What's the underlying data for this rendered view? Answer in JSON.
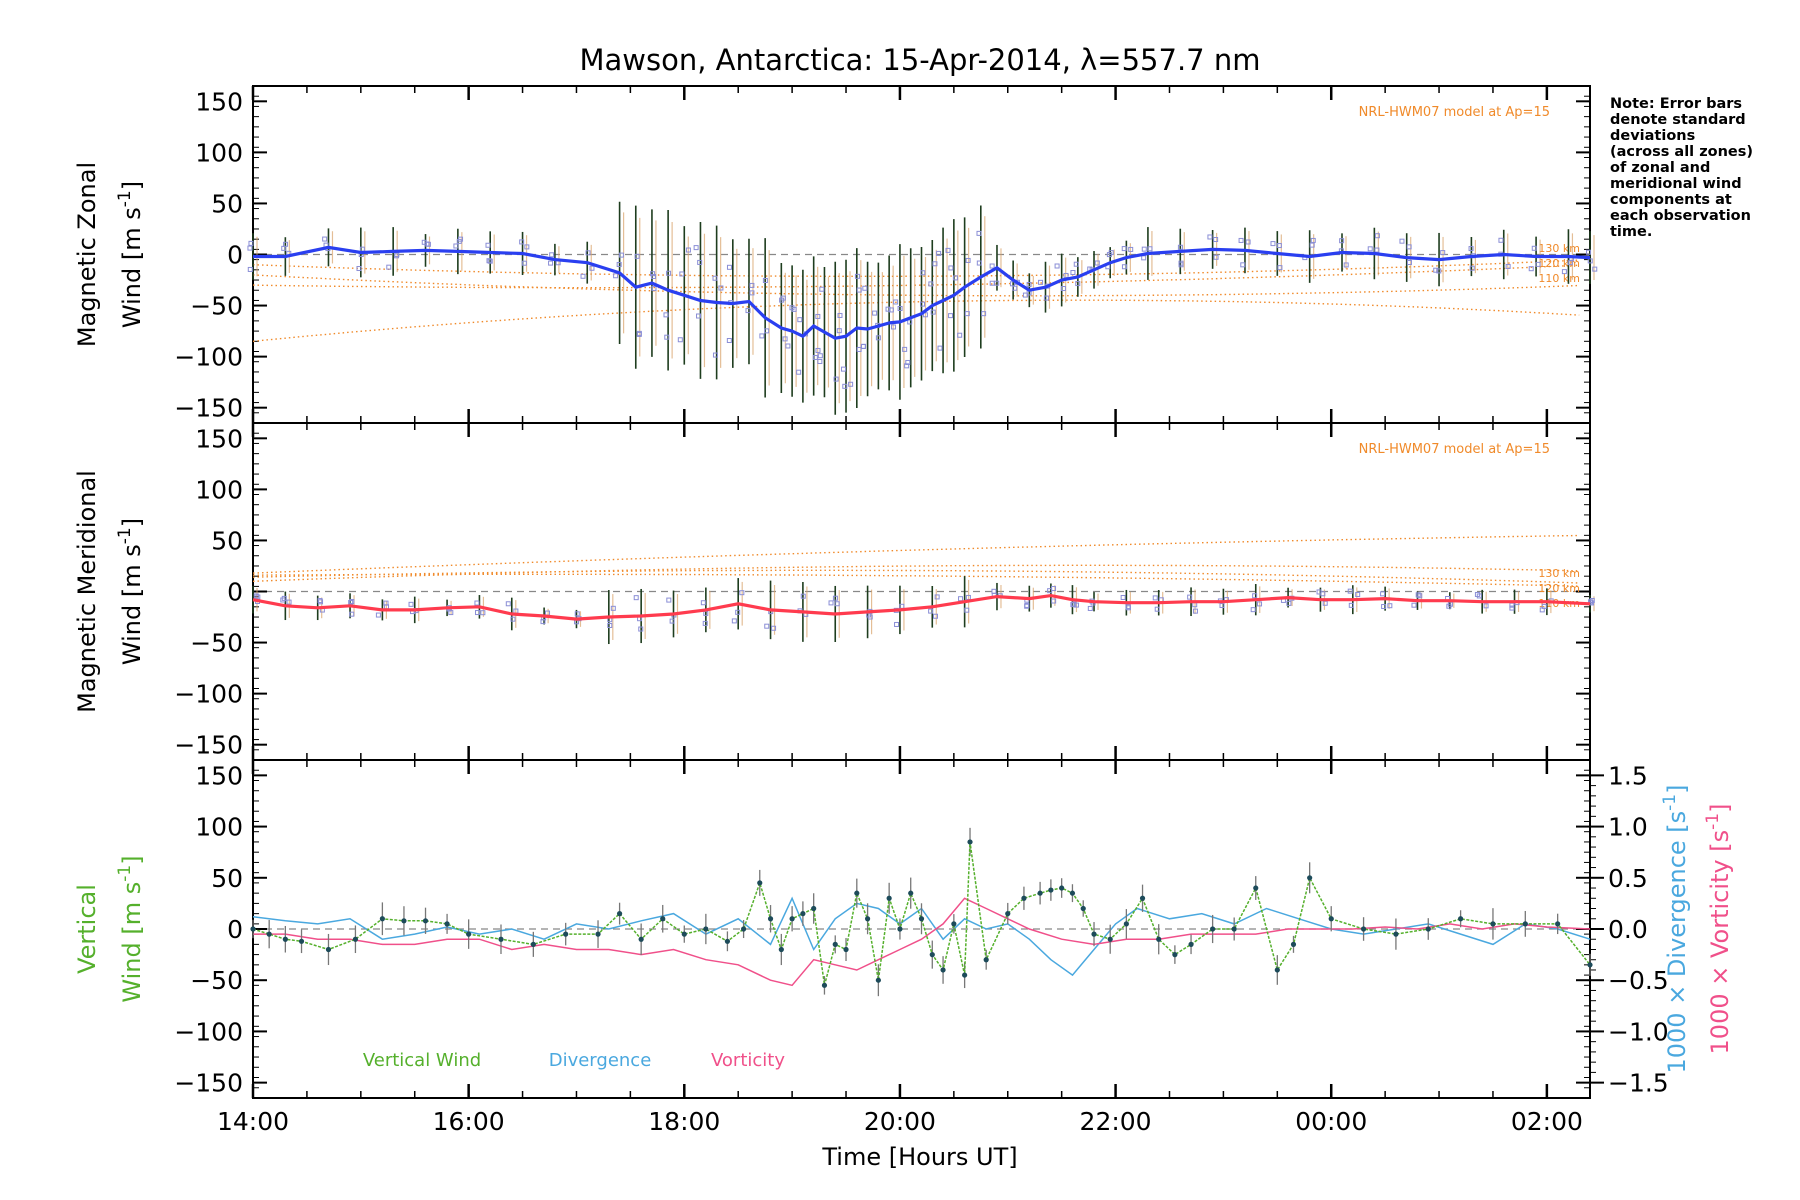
{
  "title": "Mawson, Antarctica: 15-Apr-2014, λ=557.7 nm",
  "note_lines": [
    "Note: Error bars",
    "denote standard",
    "deviations",
    "(across all zones)",
    "of zonal and",
    "meridional wind",
    "components at",
    "each observation",
    "time."
  ],
  "colors": {
    "zonal": "#2a3ff0",
    "meridional": "#ff3b4e",
    "vertical": "#55b02c",
    "divergence": "#4aa8df",
    "vorticity": "#f0508a",
    "model": "#f08a2a",
    "errorbar_dark": "#1e3d1e",
    "errorbar_gray": "#777777",
    "zone_points": "#8a8ed6",
    "zero_line": "#888888"
  },
  "chart_data": [
    {
      "type": "line",
      "panel": "zonal",
      "xlabel": "Time [Hours UT]",
      "x_ticks": [
        "14:00",
        "16:00",
        "18:00",
        "20:00",
        "22:00",
        "00:00",
        "02:00"
      ],
      "xlim": [
        14.0,
        26.4
      ],
      "ylabel": [
        "Magnetic Zonal",
        "Wind [m s",
        "-1",
        "]"
      ],
      "ylim": [
        -165,
        165
      ],
      "yticks": [
        -150,
        -100,
        -50,
        0,
        50,
        100,
        150
      ],
      "model_label": "NRL-HWM07 model at Ap=15",
      "model_heights": [
        "130 km",
        "120 km",
        "110 km"
      ],
      "series": [
        {
          "role": "mean",
          "x": [
            14.0,
            14.3,
            14.7,
            15.0,
            15.3,
            15.6,
            15.9,
            16.2,
            16.5,
            16.8,
            17.1,
            17.4,
            17.55,
            17.7,
            17.85,
            18.0,
            18.15,
            18.3,
            18.45,
            18.6,
            18.75,
            18.9,
            19.0,
            19.1,
            19.2,
            19.3,
            19.4,
            19.5,
            19.6,
            19.7,
            19.8,
            19.9,
            20.0,
            20.1,
            20.2,
            20.3,
            20.4,
            20.5,
            20.6,
            20.75,
            20.9,
            21.05,
            21.2,
            21.35,
            21.5,
            21.65,
            21.8,
            21.95,
            22.1,
            22.3,
            22.6,
            22.9,
            23.2,
            23.5,
            23.8,
            24.1,
            24.4,
            24.7,
            25.0,
            25.3,
            25.6,
            25.9,
            26.2,
            26.4
          ],
          "values": [
            -2,
            -2,
            7,
            2,
            3,
            4,
            3,
            2,
            1,
            -5,
            -8,
            -18,
            -32,
            -28,
            -35,
            -40,
            -45,
            -47,
            -48,
            -46,
            -62,
            -72,
            -75,
            -80,
            -70,
            -76,
            -82,
            -80,
            -72,
            -73,
            -70,
            -67,
            -66,
            -62,
            -58,
            -50,
            -45,
            -40,
            -32,
            -22,
            -13,
            -25,
            -35,
            -32,
            -25,
            -22,
            -15,
            -8,
            -3,
            1,
            3,
            5,
            4,
            1,
            -2,
            2,
            1,
            -3,
            -5,
            -2,
            0,
            -2,
            -2,
            -3
          ]
        }
      ]
    },
    {
      "type": "line",
      "panel": "meridional",
      "ylabel": [
        "Magnetic Meridional",
        "Wind [m s",
        "-1",
        "]"
      ],
      "ylim": [
        -165,
        165
      ],
      "yticks": [
        -150,
        -100,
        -50,
        0,
        50,
        100,
        150
      ],
      "model_label": "NRL-HWM07 model at Ap=15",
      "model_heights": [
        "130 km",
        "120 km",
        "110 km"
      ],
      "series": [
        {
          "role": "mean",
          "x": [
            14.0,
            14.3,
            14.6,
            14.9,
            15.2,
            15.5,
            15.8,
            16.1,
            16.4,
            16.7,
            17.0,
            17.3,
            17.6,
            17.9,
            18.2,
            18.5,
            18.8,
            19.1,
            19.4,
            19.7,
            20.0,
            20.3,
            20.6,
            20.9,
            21.2,
            21.4,
            21.6,
            21.8,
            22.1,
            22.4,
            22.7,
            23.0,
            23.3,
            23.6,
            23.9,
            24.2,
            24.5,
            24.8,
            25.1,
            25.4,
            25.7,
            26.0,
            26.4
          ],
          "values": [
            -8,
            -14,
            -16,
            -14,
            -18,
            -18,
            -16,
            -15,
            -22,
            -24,
            -27,
            -25,
            -24,
            -22,
            -18,
            -12,
            -18,
            -20,
            -22,
            -20,
            -18,
            -15,
            -10,
            -5,
            -7,
            -4,
            -8,
            -10,
            -11,
            -11,
            -10,
            -10,
            -8,
            -6,
            -8,
            -8,
            -7,
            -9,
            -9,
            -10,
            -10,
            -10,
            -12
          ]
        }
      ]
    },
    {
      "type": "line",
      "panel": "vertical",
      "ylabel": [
        "Vertical",
        "Wind [m s",
        "-1",
        "]"
      ],
      "ylim": [
        -165,
        165
      ],
      "yticks": [
        -150,
        -100,
        -50,
        0,
        50,
        100,
        150
      ],
      "y2ticks": [
        -1.5,
        -1.0,
        -0.5,
        0.0,
        0.5,
        1.0,
        1.5
      ],
      "y2label_divergence": [
        "1000 × Divergence [s",
        "-1",
        "]"
      ],
      "y2label_vorticity": [
        "1000 × Vorticity [s",
        "-1",
        "]"
      ],
      "legend": [
        "Vertical Wind",
        "Divergence",
        "Vorticity"
      ],
      "series": [
        {
          "name": "Vertical Wind",
          "x": [
            14.0,
            14.15,
            14.3,
            14.45,
            14.7,
            14.95,
            15.2,
            15.4,
            15.6,
            15.8,
            16.0,
            16.3,
            16.6,
            16.9,
            17.2,
            17.4,
            17.6,
            17.8,
            18.0,
            18.2,
            18.4,
            18.55,
            18.7,
            18.8,
            18.9,
            19.0,
            19.1,
            19.2,
            19.3,
            19.4,
            19.5,
            19.6,
            19.7,
            19.8,
            19.9,
            20.0,
            20.1,
            20.2,
            20.3,
            20.4,
            20.5,
            20.6,
            20.65,
            20.8,
            21.0,
            21.15,
            21.3,
            21.4,
            21.5,
            21.6,
            21.7,
            21.8,
            21.95,
            22.1,
            22.25,
            22.4,
            22.55,
            22.7,
            22.9,
            23.1,
            23.3,
            23.5,
            23.65,
            23.8,
            24.0,
            24.3,
            24.6,
            24.9,
            25.2,
            25.5,
            25.8,
            26.1,
            26.4
          ],
          "values": [
            0,
            -5,
            -10,
            -12,
            -20,
            -10,
            10,
            8,
            8,
            5,
            -5,
            -10,
            -15,
            -5,
            -5,
            15,
            -10,
            10,
            -5,
            0,
            -12,
            0,
            45,
            10,
            -20,
            10,
            15,
            20,
            -55,
            -15,
            -20,
            35,
            10,
            -50,
            30,
            0,
            35,
            10,
            -25,
            -40,
            5,
            -45,
            85,
            -30,
            15,
            30,
            35,
            38,
            40,
            35,
            20,
            -5,
            -10,
            5,
            30,
            -10,
            -25,
            -15,
            0,
            0,
            40,
            -40,
            -15,
            50,
            10,
            0,
            -5,
            0,
            10,
            5,
            5,
            5,
            -35
          ],
          "errorbars": true
        },
        {
          "name": "Divergence",
          "axis": "right",
          "x": [
            14.0,
            14.3,
            14.6,
            14.9,
            15.2,
            15.5,
            15.8,
            16.1,
            16.4,
            16.7,
            17.0,
            17.3,
            17.6,
            17.9,
            18.2,
            18.5,
            18.8,
            19.0,
            19.2,
            19.4,
            19.6,
            19.8,
            20.0,
            20.2,
            20.4,
            20.6,
            20.8,
            21.0,
            21.2,
            21.4,
            21.6,
            21.8,
            22.0,
            22.2,
            22.5,
            22.8,
            23.1,
            23.4,
            23.7,
            24.0,
            24.3,
            24.6,
            24.9,
            25.2,
            25.5,
            25.8,
            26.1,
            26.4
          ],
          "values": [
            0.12,
            0.08,
            0.05,
            0.1,
            -0.1,
            -0.05,
            0.02,
            -0.05,
            0.0,
            -0.1,
            0.05,
            0.0,
            0.08,
            0.15,
            -0.05,
            0.1,
            -0.15,
            0.3,
            -0.2,
            0.1,
            0.25,
            0.2,
            0.05,
            0.2,
            -0.1,
            0.1,
            0.0,
            0.05,
            -0.1,
            -0.3,
            -0.45,
            -0.2,
            0.05,
            0.2,
            0.1,
            0.15,
            0.05,
            0.2,
            0.1,
            0.0,
            -0.05,
            0.0,
            0.05,
            -0.05,
            -0.15,
            0.05,
            0.0,
            -0.1
          ]
        },
        {
          "name": "Vorticity",
          "axis": "right",
          "x": [
            14.0,
            14.3,
            14.6,
            14.9,
            15.2,
            15.5,
            15.8,
            16.1,
            16.4,
            16.7,
            17.0,
            17.3,
            17.6,
            17.9,
            18.2,
            18.5,
            18.8,
            19.0,
            19.2,
            19.4,
            19.6,
            19.8,
            20.0,
            20.2,
            20.4,
            20.6,
            20.8,
            21.0,
            21.2,
            21.5,
            21.8,
            22.1,
            22.4,
            22.7,
            23.0,
            23.3,
            23.6,
            23.9,
            24.2,
            24.5,
            24.8,
            25.1,
            25.4,
            25.7,
            26.0,
            26.4
          ],
          "values": [
            -0.05,
            -0.05,
            -0.1,
            -0.1,
            -0.15,
            -0.15,
            -0.1,
            -0.1,
            -0.2,
            -0.15,
            -0.2,
            -0.2,
            -0.25,
            -0.2,
            -0.3,
            -0.35,
            -0.5,
            -0.55,
            -0.3,
            -0.35,
            -0.4,
            -0.3,
            -0.2,
            -0.1,
            0.05,
            0.3,
            0.2,
            0.1,
            0.0,
            -0.1,
            -0.15,
            -0.1,
            -0.1,
            -0.05,
            -0.05,
            -0.05,
            0.0,
            0.0,
            0.0,
            0.02,
            0.0,
            0.05,
            0.0,
            0.05,
            0.02,
            0.0
          ]
        }
      ]
    }
  ]
}
